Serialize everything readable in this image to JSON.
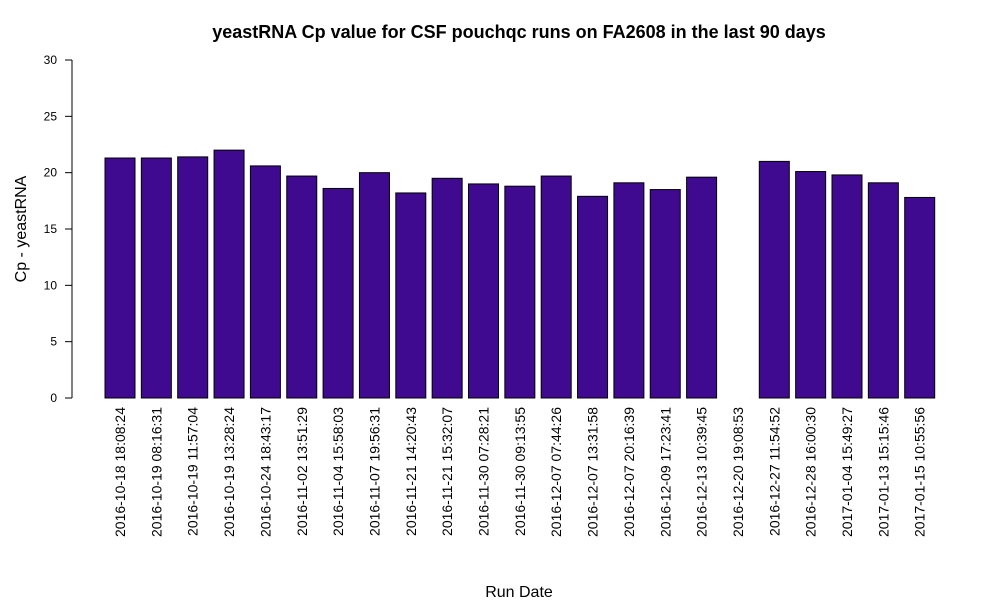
{
  "chart_data": {
    "type": "bar",
    "title": "yeastRNA Cp value for CSF pouchqc runs on FA2608 in the last 90 days",
    "xlabel": "Run Date",
    "ylabel": "Cp - yeastRNA",
    "ylim": [
      0,
      30
    ],
    "yticks": [
      "0",
      "5",
      "10",
      "15",
      "20",
      "25",
      "30"
    ],
    "grid": false,
    "bar_color": "#3f0a8f",
    "categories": [
      "2016-10-18 18:08:24",
      "2016-10-19 08:16:31",
      "2016-10-19 11:57:04",
      "2016-10-19 13:28:24",
      "2016-10-24 18:43:17",
      "2016-11-02 13:51:29",
      "2016-11-04 15:58:03",
      "2016-11-07 19:56:31",
      "2016-11-21 14:20:43",
      "2016-11-21 15:32:07",
      "2016-11-30 07:28:21",
      "2016-11-30 09:13:55",
      "2016-12-07 07:44:26",
      "2016-12-07 13:31:58",
      "2016-12-07 20:16:39",
      "2016-12-09 17:23:41",
      "2016-12-13 10:39:45",
      "2016-12-20 19:08:53",
      "2016-12-27 11:54:52",
      "2016-12-28 16:00:30",
      "2017-01-04 15:49:27",
      "2017-01-13 15:15:46",
      "2017-01-15 10:55:56"
    ],
    "values": [
      21.3,
      21.3,
      21.4,
      22.0,
      20.6,
      19.7,
      18.6,
      20.0,
      18.2,
      19.5,
      19.0,
      18.8,
      19.7,
      17.9,
      19.1,
      18.5,
      19.6,
      null,
      21.0,
      20.1,
      19.8,
      19.1,
      17.8
    ]
  }
}
